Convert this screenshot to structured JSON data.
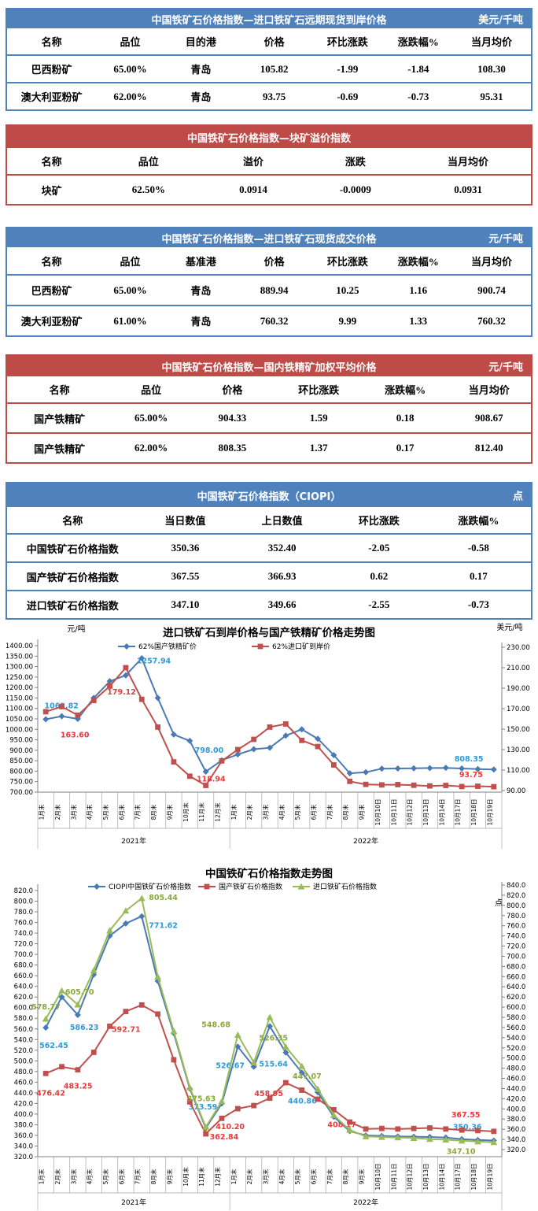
{
  "report": {
    "language": "zh-CN"
  },
  "colors": {
    "table_blue": "#4F81BD",
    "table_red": "#BE4B48",
    "series_blue": "#4A7AB5",
    "series_red": "#C0504D",
    "series_green": "#9BBB59",
    "label_blue": "#2E9AD8",
    "label_red": "#E8393D",
    "label_green": "#8AA93C"
  },
  "tables": [
    {
      "theme": "blue",
      "title": "中国铁矿石价格指数—进口铁矿石远期现货到岸价格",
      "unit": "美元/千吨",
      "columns": [
        "名称",
        "品位",
        "目的港",
        "价格",
        "环比涨跌",
        "涨跌幅%",
        "当月均价"
      ],
      "rows": [
        [
          "巴西粉矿",
          "65.00%",
          "青岛",
          "105.82",
          "-1.99",
          "-1.84",
          "108.30"
        ],
        [
          "澳大利亚粉矿",
          "62.00%",
          "青岛",
          "93.75",
          "-0.69",
          "-0.73",
          "95.31"
        ]
      ]
    },
    {
      "theme": "red",
      "title": "中国铁矿石价格指数—块矿溢价指数",
      "unit": "",
      "columns": [
        "名称",
        "品位",
        "溢价",
        "涨跌",
        "当月均价"
      ],
      "rows": [
        [
          "块矿",
          "62.50%",
          "0.0914",
          "-0.0009",
          "0.0931"
        ]
      ]
    },
    {
      "theme": "blue",
      "title": "中国铁矿石价格指数—进口铁矿石现货成交价格",
      "unit": "元/千吨",
      "columns": [
        "名称",
        "品位",
        "基准港",
        "价格",
        "环比涨跌",
        "涨跌幅%",
        "当月均价"
      ],
      "rows": [
        [
          "巴西粉矿",
          "65.00%",
          "青岛",
          "889.94",
          "10.25",
          "1.16",
          "900.74"
        ],
        [
          "澳大利亚粉矿",
          "61.00%",
          "青岛",
          "760.32",
          "9.99",
          "1.33",
          "760.32"
        ]
      ]
    },
    {
      "theme": "red",
      "title": "中国铁矿石价格指数—国内铁精矿加权平均价格",
      "unit": "元/千吨",
      "columns": [
        "名称",
        "品位",
        "价格",
        "环比涨跌",
        "涨跌幅%",
        "当月均价"
      ],
      "rows": [
        [
          "国产铁精矿",
          "65.00%",
          "904.33",
          "1.59",
          "0.18",
          "908.67"
        ],
        [
          "国产铁精矿",
          "62.00%",
          "808.35",
          "1.37",
          "0.17",
          "812.40"
        ]
      ]
    },
    {
      "theme": "blue",
      "title": "中国铁矿石价格指数（CIOPI）",
      "unit": "点",
      "columns": [
        "名称",
        "当日数值",
        "上日数值",
        "环比涨跌",
        "涨跌幅%"
      ],
      "rows": [
        [
          "中国铁矿石价格指数",
          "350.36",
          "352.40",
          "-2.05",
          "-0.58"
        ],
        [
          "国产铁矿石价格指数",
          "367.55",
          "366.93",
          "0.62",
          "0.17"
        ],
        [
          "进口铁矿石价格指数",
          "347.10",
          "349.66",
          "-2.55",
          "-0.73"
        ]
      ]
    }
  ],
  "chart_data": [
    {
      "type": "line",
      "title": "进口铁矿石到岸价格与国产铁精矿价格走势图",
      "grid": false,
      "legend_position": "top",
      "categories": [
        "1月末",
        "2月末",
        "3月末",
        "4月末",
        "5月末",
        "6月末",
        "7月末",
        "8月末",
        "9月末",
        "10月末",
        "11月末",
        "12月末",
        "1月末",
        "2月末",
        "3月末",
        "4月末",
        "5月末",
        "6月末",
        "7月末",
        "8月末",
        "9月末",
        "10月10日",
        "10月11日",
        "10月12日",
        "10月13日",
        "10月14日",
        "10月17日",
        "10月18日",
        "10月19日"
      ],
      "year_groups": [
        {
          "label": "2021年",
          "count": 12
        },
        {
          "label": "2022年",
          "count": 17
        }
      ],
      "y_left": {
        "unit": "元/吨",
        "min": 700,
        "max": 1400,
        "step": 50,
        "decimals": 2
      },
      "y_right": {
        "unit": "美元/吨",
        "min": 90,
        "max": 230,
        "step": 20,
        "decimals": 2
      },
      "series": [
        {
          "name": "62%国产铁精矿价",
          "axis": "left",
          "marker": "diamond",
          "color": "#4A7AB5",
          "label_color": "#2E9AD8",
          "values": [
            1048,
            1062.82,
            1050,
            1150,
            1230,
            1257.94,
            1340,
            1150,
            975,
            945,
            798.0,
            852,
            880,
            905,
            912,
            970,
            1000,
            955,
            877,
            790,
            795,
            812,
            813,
            814,
            815,
            816,
            813,
            810,
            808.35
          ],
          "annotations": [
            {
              "i": 1,
              "t": "1062.82",
              "dx": -22,
              "dy": -10
            },
            {
              "i": 5,
              "t": "1257.94",
              "dx": 14,
              "dy": -15
            },
            {
              "i": 10,
              "t": "798.00",
              "dx": -14,
              "dy": -24
            },
            {
              "i": 28,
              "t": "808.35",
              "dx": -50,
              "dy": -10
            }
          ]
        },
        {
          "name": "62%进口矿到岸价",
          "axis": "right",
          "marker": "square",
          "color": "#C0504D",
          "label_color": "#E8393D",
          "values": [
            167,
            172,
            163.6,
            178,
            192,
            210,
            179.12,
            152,
            118,
            104,
            95,
            118.94,
            130,
            140,
            152,
            155,
            139,
            133,
            115,
            99,
            96,
            95.5,
            95.8,
            95.2,
            94.5,
            95,
            93.9,
            94.2,
            93.75
          ],
          "annotations": [
            {
              "i": 2,
              "t": "163.60",
              "dx": -22,
              "dy": 28
            },
            {
              "i": 6,
              "t": "179.12",
              "dx": -44,
              "dy": -6
            },
            {
              "i": 11,
              "t": "118.94",
              "dx": -32,
              "dy": 26
            },
            {
              "i": 28,
              "t": "93.75",
              "dx": -44,
              "dy": -12
            }
          ]
        }
      ]
    },
    {
      "type": "line",
      "title": "中国铁矿石价格指数走势图",
      "grid": false,
      "legend_position": "top",
      "categories": [
        "1月末",
        "2月末",
        "3月末",
        "4月末",
        "5月末",
        "6月末",
        "7月末",
        "8月末",
        "9月末",
        "10月末",
        "11月末",
        "12月末",
        "1月末",
        "2月末",
        "3月末",
        "4月末",
        "5月末",
        "6月末",
        "7月末",
        "8月末",
        "9月末",
        "10月10日",
        "10月11日",
        "10月12日",
        "10月13日",
        "10月14日",
        "10月17日",
        "10月18日",
        "10月19日"
      ],
      "year_groups": [
        {
          "label": "2021年",
          "count": 12
        },
        {
          "label": "2022年",
          "count": 17
        }
      ],
      "y_left": {
        "unit": "",
        "min": 320,
        "max": 820,
        "step": 20,
        "decimals": 1
      },
      "y_right": {
        "unit": "点",
        "min": 320,
        "max": 840,
        "step": 20,
        "decimals": 1
      },
      "series": [
        {
          "name": "CIOPI中国铁矿石价格指数",
          "axis": "left",
          "marker": "diamond",
          "color": "#4A7AB5",
          "label_color": "#2E9AD8",
          "values": [
            562.45,
            620,
            586.23,
            662,
            735,
            758,
            771.62,
            650,
            552,
            448,
            373.59,
            420,
            526.67,
            489,
            565,
            515.64,
            478,
            440.86,
            395,
            368,
            360,
            359,
            358,
            357.5,
            357,
            356,
            353,
            351.5,
            350.36
          ],
          "annotations": [
            {
              "i": 0,
              "t": "562.45",
              "dx": -8,
              "dy": 26
            },
            {
              "i": 2,
              "t": "586.23",
              "dx": -10,
              "dy": 19
            },
            {
              "i": 6,
              "t": "771.62",
              "dx": 9,
              "dy": 15
            },
            {
              "i": 10,
              "t": "373.59",
              "dx": -22,
              "dy": -24
            },
            {
              "i": 12,
              "t": "526.67",
              "dx": -28,
              "dy": 27
            },
            {
              "i": 15,
              "t": "515.64",
              "dx": -34,
              "dy": 18
            },
            {
              "i": 17,
              "t": "440.86",
              "dx": -38,
              "dy": 14
            },
            {
              "i": 28,
              "t": "350.36",
              "dx": -52,
              "dy": -14
            }
          ]
        },
        {
          "name": "国产铁矿石价格指数",
          "axis": "left",
          "marker": "square",
          "color": "#C0504D",
          "label_color": "#E8393D",
          "values": [
            476.42,
            489,
            483.25,
            516,
            565,
            592.71,
            605,
            588,
            502,
            423,
            362.84,
            392,
            410.2,
            416,
            430,
            458.95,
            445,
            428,
            408.17,
            385,
            372,
            373,
            372,
            373,
            374,
            372,
            370,
            369,
            367.55
          ],
          "annotations": [
            {
              "i": 0,
              "t": "476.42",
              "dx": -12,
              "dy": 28
            },
            {
              "i": 2,
              "t": "483.25",
              "dx": -18,
              "dy": 24
            },
            {
              "i": 5,
              "t": "592.71",
              "dx": -18,
              "dy": 26
            },
            {
              "i": 10,
              "t": "362.84",
              "dx": 5,
              "dy": 7
            },
            {
              "i": 12,
              "t": "410.20",
              "dx": -28,
              "dy": 26
            },
            {
              "i": 15,
              "t": "458.95",
              "dx": -40,
              "dy": 17
            },
            {
              "i": 18,
              "t": "408.17",
              "dx": -8,
              "dy": 22
            },
            {
              "i": 28,
              "t": "367.55",
              "dx": -54,
              "dy": -18
            }
          ]
        },
        {
          "name": "进口铁矿石价格指数",
          "axis": "left",
          "marker": "triangle",
          "color": "#9BBB59",
          "label_color": "#8AA93C",
          "values": [
            578.77,
            632,
            605.7,
            670,
            745,
            782,
            805.44,
            658,
            556,
            450,
            375.63,
            424,
            548.68,
            497,
            582,
            526.35,
            490,
            447.07,
            398,
            370,
            358,
            357,
            356,
            355,
            353,
            352,
            350,
            348.5,
            347.1
          ],
          "annotations": [
            {
              "i": 0,
              "t": "578.77",
              "dx": -18,
              "dy": -12
            },
            {
              "i": 2,
              "t": "605.70",
              "dx": -16,
              "dy": -13
            },
            {
              "i": 6,
              "t": "805.44",
              "dx": 9,
              "dy": 2
            },
            {
              "i": 10,
              "t": "375.63",
              "dx": -24,
              "dy": -33
            },
            {
              "i": 12,
              "t": "548.68",
              "dx": -46,
              "dy": -10
            },
            {
              "i": 15,
              "t": "526.35",
              "dx": -34,
              "dy": -8
            },
            {
              "i": 17,
              "t": "447.07",
              "dx": -32,
              "dy": -13
            },
            {
              "i": 28,
              "t": "347.10",
              "dx": -60,
              "dy": 15
            }
          ]
        }
      ]
    }
  ]
}
